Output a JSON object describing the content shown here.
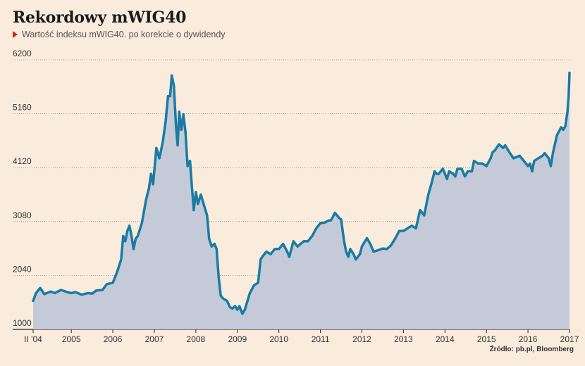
{
  "header": {
    "title": "Rekordowy mWIG40",
    "subtitle": "Wartość indeksu mWIG40. po korekcie o dywidendy"
  },
  "source": "Źródło: pb.pl, Bloomberg",
  "colors": {
    "background": "#f9ecdd",
    "line": "#1a7ba3",
    "area": "#c5cad8",
    "grid": "#8a8a8a",
    "accent": "#d6231c"
  },
  "chart_data": {
    "type": "area",
    "title": "Rekordowy mWIG40",
    "subtitle": "Wartość indeksu mWIG40. po korekcie o dywidendy",
    "xlabel": "",
    "ylabel": "",
    "ylim": [
      1000,
      6200
    ],
    "xlim": [
      2004.08,
      2017.0
    ],
    "yticks": [
      1000,
      2040,
      3080,
      4120,
      5160,
      6200
    ],
    "xticks": [
      {
        "x": 2004.08,
        "label": "II '04"
      },
      {
        "x": 2005,
        "label": "2005"
      },
      {
        "x": 2006,
        "label": "2006"
      },
      {
        "x": 2007,
        "label": "2007"
      },
      {
        "x": 2008,
        "label": "2008"
      },
      {
        "x": 2009,
        "label": "2009"
      },
      {
        "x": 2010,
        "label": "2010"
      },
      {
        "x": 2011,
        "label": "2011"
      },
      {
        "x": 2012,
        "label": "2012"
      },
      {
        "x": 2013,
        "label": "2013"
      },
      {
        "x": 2014,
        "label": "2014"
      },
      {
        "x": 2015,
        "label": "2015"
      },
      {
        "x": 2016,
        "label": "2016"
      },
      {
        "x": 2017,
        "label": "2017"
      }
    ],
    "grid": "horizontal dotted",
    "series": [
      {
        "values": [
          [
            2004.08,
            1550
          ],
          [
            2004.15,
            1700
          ],
          [
            2004.25,
            1800
          ],
          [
            2004.35,
            1680
          ],
          [
            2004.5,
            1730
          ],
          [
            2004.6,
            1700
          ],
          [
            2004.75,
            1760
          ],
          [
            2004.9,
            1720
          ],
          [
            2005.0,
            1700
          ],
          [
            2005.1,
            1720
          ],
          [
            2005.25,
            1670
          ],
          [
            2005.4,
            1700
          ],
          [
            2005.5,
            1690
          ],
          [
            2005.6,
            1750
          ],
          [
            2005.75,
            1760
          ],
          [
            2005.85,
            1870
          ],
          [
            2006.0,
            1900
          ],
          [
            2006.1,
            2100
          ],
          [
            2006.2,
            2350
          ],
          [
            2006.25,
            2800
          ],
          [
            2006.3,
            2700
          ],
          [
            2006.35,
            2900
          ],
          [
            2006.4,
            3000
          ],
          [
            2006.45,
            2800
          ],
          [
            2006.5,
            2550
          ],
          [
            2006.55,
            2750
          ],
          [
            2006.6,
            2800
          ],
          [
            2006.7,
            3050
          ],
          [
            2006.8,
            3500
          ],
          [
            2006.87,
            3720
          ],
          [
            2006.92,
            4000
          ],
          [
            2006.97,
            3800
          ],
          [
            2007.05,
            4500
          ],
          [
            2007.12,
            4300
          ],
          [
            2007.2,
            4600
          ],
          [
            2007.27,
            5000
          ],
          [
            2007.33,
            5500
          ],
          [
            2007.38,
            5500
          ],
          [
            2007.42,
            5900
          ],
          [
            2007.47,
            5700
          ],
          [
            2007.52,
            4950
          ],
          [
            2007.56,
            4550
          ],
          [
            2007.6,
            5200
          ],
          [
            2007.65,
            4850
          ],
          [
            2007.7,
            5150
          ],
          [
            2007.75,
            4800
          ],
          [
            2007.8,
            4150
          ],
          [
            2007.86,
            4250
          ],
          [
            2007.9,
            3800
          ],
          [
            2007.95,
            3300
          ],
          [
            2008.0,
            3650
          ],
          [
            2008.05,
            3420
          ],
          [
            2008.12,
            3600
          ],
          [
            2008.2,
            3380
          ],
          [
            2008.27,
            3200
          ],
          [
            2008.32,
            2750
          ],
          [
            2008.38,
            2600
          ],
          [
            2008.45,
            2650
          ],
          [
            2008.5,
            2550
          ],
          [
            2008.55,
            2000
          ],
          [
            2008.6,
            1650
          ],
          [
            2008.65,
            1600
          ],
          [
            2008.75,
            1550
          ],
          [
            2008.82,
            1430
          ],
          [
            2008.88,
            1400
          ],
          [
            2008.94,
            1450
          ],
          [
            2009.0,
            1380
          ],
          [
            2009.05,
            1450
          ],
          [
            2009.12,
            1300
          ],
          [
            2009.18,
            1380
          ],
          [
            2009.3,
            1700
          ],
          [
            2009.4,
            1850
          ],
          [
            2009.5,
            1900
          ],
          [
            2009.56,
            2350
          ],
          [
            2009.6,
            2400
          ],
          [
            2009.7,
            2500
          ],
          [
            2009.8,
            2450
          ],
          [
            2009.9,
            2550
          ],
          [
            2010.0,
            2550
          ],
          [
            2010.1,
            2650
          ],
          [
            2010.2,
            2500
          ],
          [
            2010.25,
            2400
          ],
          [
            2010.35,
            2700
          ],
          [
            2010.45,
            2600
          ],
          [
            2010.6,
            2700
          ],
          [
            2010.7,
            2700
          ],
          [
            2010.8,
            2800
          ],
          [
            2010.9,
            2950
          ],
          [
            2011.0,
            3050
          ],
          [
            2011.1,
            3060
          ],
          [
            2011.2,
            3100
          ],
          [
            2011.25,
            3100
          ],
          [
            2011.3,
            3170
          ],
          [
            2011.35,
            3250
          ],
          [
            2011.45,
            3150
          ],
          [
            2011.5,
            3120
          ],
          [
            2011.57,
            2700
          ],
          [
            2011.62,
            2500
          ],
          [
            2011.67,
            2400
          ],
          [
            2011.72,
            2550
          ],
          [
            2011.8,
            2450
          ],
          [
            2011.85,
            2350
          ],
          [
            2011.95,
            2450
          ],
          [
            2012.0,
            2600
          ],
          [
            2012.12,
            2760
          ],
          [
            2012.2,
            2650
          ],
          [
            2012.28,
            2500
          ],
          [
            2012.4,
            2530
          ],
          [
            2012.5,
            2560
          ],
          [
            2012.6,
            2550
          ],
          [
            2012.7,
            2620
          ],
          [
            2012.8,
            2750
          ],
          [
            2012.9,
            2900
          ],
          [
            2013.0,
            2900
          ],
          [
            2013.1,
            2950
          ],
          [
            2013.2,
            3000
          ],
          [
            2013.3,
            2950
          ],
          [
            2013.4,
            3300
          ],
          [
            2013.5,
            3200
          ],
          [
            2013.6,
            3600
          ],
          [
            2013.67,
            3800
          ],
          [
            2013.75,
            4050
          ],
          [
            2013.8,
            4000
          ],
          [
            2013.85,
            4000
          ],
          [
            2013.9,
            4050
          ],
          [
            2013.95,
            4100
          ],
          [
            2014.0,
            4000
          ],
          [
            2014.05,
            3900
          ],
          [
            2014.1,
            4050
          ],
          [
            2014.2,
            4000
          ],
          [
            2014.25,
            3950
          ],
          [
            2014.3,
            4100
          ],
          [
            2014.4,
            4100
          ],
          [
            2014.48,
            3950
          ],
          [
            2014.55,
            4050
          ],
          [
            2014.65,
            4050
          ],
          [
            2014.7,
            4250
          ],
          [
            2014.8,
            4200
          ],
          [
            2014.9,
            4200
          ],
          [
            2015.0,
            4150
          ],
          [
            2015.1,
            4300
          ],
          [
            2015.15,
            4420
          ],
          [
            2015.2,
            4450
          ],
          [
            2015.3,
            4570
          ],
          [
            2015.4,
            4500
          ],
          [
            2015.45,
            4550
          ],
          [
            2015.55,
            4420
          ],
          [
            2015.65,
            4300
          ],
          [
            2015.8,
            4350
          ],
          [
            2015.9,
            4250
          ],
          [
            2016.0,
            4150
          ],
          [
            2016.05,
            4200
          ],
          [
            2016.1,
            4050
          ],
          [
            2016.15,
            4250
          ],
          [
            2016.25,
            4300
          ],
          [
            2016.35,
            4350
          ],
          [
            2016.4,
            4400
          ],
          [
            2016.5,
            4300
          ],
          [
            2016.55,
            4150
          ],
          [
            2016.6,
            4400
          ],
          [
            2016.7,
            4750
          ],
          [
            2016.8,
            4900
          ],
          [
            2016.85,
            4850
          ],
          [
            2016.9,
            4920
          ],
          [
            2016.95,
            5200
          ],
          [
            2016.98,
            5500
          ],
          [
            2017.0,
            5950
          ]
        ]
      }
    ]
  }
}
